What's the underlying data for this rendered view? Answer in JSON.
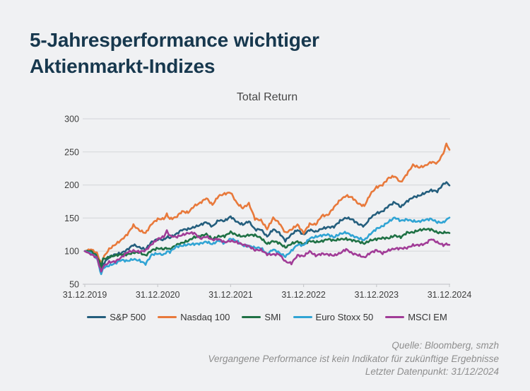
{
  "page": {
    "background_color": "#f0f1f3",
    "title_color": "#17384e"
  },
  "header": {
    "title_line1": "5-Jahresperformance wichtiger",
    "title_line2": "Aktienmarkt-Indizes"
  },
  "footer": {
    "line1": "Quelle: Bloomberg, smzh",
    "line2": "Vergangene Performance ist kein Indikator für zukünftige Ergebnisse",
    "line3": "Letzter Datenpunkt: 31/12/2024"
  },
  "chart_data": {
    "type": "line",
    "title": "Total Return",
    "xlabel": "",
    "ylabel": "",
    "grid": true,
    "legend_position": "bottom",
    "ylim": [
      50,
      300
    ],
    "y_ticks": [
      50,
      100,
      150,
      200,
      250,
      300
    ],
    "x_unit": "months since 31.12.2019",
    "xlim": [
      0,
      60
    ],
    "x_ticks": [
      {
        "m": 0,
        "label": "31.12.2019"
      },
      {
        "m": 12,
        "label": "31.12.2020"
      },
      {
        "m": 24,
        "label": "31.12.2021"
      },
      {
        "m": 36,
        "label": "31.12.2022"
      },
      {
        "m": 48,
        "label": "31.12.2023"
      },
      {
        "m": 60,
        "label": "31.12.2024"
      }
    ],
    "index_base": 100,
    "x": [
      0,
      1,
      2,
      2.7,
      3,
      4,
      5,
      6,
      7,
      8,
      9,
      10,
      11,
      12,
      13,
      13.5,
      14,
      15,
      16,
      17,
      18,
      19,
      20,
      21,
      22,
      23,
      24,
      25,
      26,
      27,
      28,
      29,
      30,
      31,
      32,
      33,
      34,
      35,
      36,
      37,
      38,
      39,
      40,
      41,
      42,
      43,
      44,
      45,
      46,
      47,
      48,
      49,
      50,
      51,
      52,
      53,
      54,
      55,
      56,
      57,
      58,
      59,
      59.5,
      60
    ],
    "series": [
      {
        "name": "S&P 500",
        "color": "#245e7d",
        "values": [
          100,
          99.9,
          91.8,
          70.5,
          80.4,
          90.7,
          95.0,
          96.9,
          102.3,
          109.7,
          105.5,
          102.7,
          113.9,
          118.2,
          117.0,
          121.5,
          120.3,
          125.6,
          132.3,
          133.2,
          136.3,
          139.6,
          143.8,
          137.1,
          146.7,
          145.7,
          152.2,
          144.3,
          140.0,
          145.2,
          132.6,
          132.8,
          121.8,
          133.0,
          127.6,
          115.8,
          125.2,
          132.2,
          124.6,
          132.4,
          129.2,
          134.0,
          136.1,
          136.7,
          145.7,
          150.4,
          148.0,
          140.9,
          137.9,
          150.5,
          157.3,
          160.0,
          168.5,
          173.9,
          166.8,
          175.1,
          181.4,
          183.6,
          188.0,
          192.0,
          190.3,
          201.5,
          204.0,
          199.5
        ]
      },
      {
        "name": "Nasdaq 100",
        "color": "#e8793b",
        "values": [
          100,
          103.0,
          96.9,
          81.0,
          89.5,
          103.1,
          109.9,
          116.8,
          125.4,
          139.2,
          131.3,
          127.2,
          141.2,
          148.4,
          148.8,
          155.5,
          148.7,
          151.2,
          160.1,
          158.2,
          168.2,
          172.9,
          180.2,
          169.9,
          183.3,
          186.6,
          188.8,
          172.8,
          165.0,
          171.9,
          149.0,
          146.6,
          133.4,
          150.2,
          142.5,
          127.6,
          132.7,
          140.0,
          127.4,
          140.9,
          140.3,
          153.6,
          154.4,
          166.3,
          177.1,
          183.8,
          181.0,
          171.8,
          168.2,
          186.4,
          196.6,
          200.1,
          210.7,
          213.2,
          203.8,
          216.6,
          230.2,
          226.5,
          229.0,
          234.7,
          232.8,
          248.0,
          262.0,
          253.0
        ]
      },
      {
        "name": "SMI",
        "color": "#1f7145",
        "values": [
          100,
          100.2,
          92.6,
          77.0,
          87.8,
          91.0,
          93.6,
          94.8,
          95.0,
          97.7,
          98.1,
          93.3,
          101.3,
          104.3,
          103.2,
          104.8,
          102.5,
          109.3,
          112.4,
          115.6,
          121.0,
          122.7,
          125.7,
          118.1,
          122.3,
          122.7,
          128.8,
          124.2,
          122.1,
          124.4,
          124.2,
          119.8,
          110.9,
          115.3,
          112.2,
          105.5,
          111.2,
          114.5,
          110.5,
          115.5,
          113.7,
          114.9,
          118.3,
          116.1,
          118.0,
          118.4,
          116.4,
          114.7,
          111.5,
          116.3,
          118.2,
          119.8,
          119.6,
          123.5,
          121.0,
          128.1,
          128.3,
          131.8,
          133.1,
          132.8,
          128.2,
          127.6,
          128.5,
          127.2
        ]
      },
      {
        "name": "Euro Stoxx 50",
        "color": "#30a4d4",
        "values": [
          100,
          97.2,
          89.0,
          65.0,
          74.4,
          78.2,
          81.7,
          86.6,
          85.1,
          87.8,
          85.8,
          80.7,
          94.6,
          96.3,
          94.4,
          99.5,
          98.8,
          106.5,
          108.2,
          110.0,
          110.7,
          111.4,
          114.3,
          110.5,
          116.1,
          111.9,
          118.7,
          115.4,
          108.5,
          107.9,
          105.2,
          104.8,
          95.5,
          102.7,
          97.5,
          91.9,
          100.3,
          109.9,
          108.6,
          119.4,
          121.6,
          123.8,
          125.0,
          121.0,
          126.2,
          128.2,
          123.2,
          119.9,
          116.6,
          126.0,
          133.8,
          137.7,
          144.5,
          150.7,
          145.9,
          147.8,
          145.3,
          144.7,
          147.3,
          148.6,
          143.7,
          143.3,
          147.5,
          151.0
        ]
      },
      {
        "name": "MSCI EM",
        "color": "#a13c97",
        "values": [
          100,
          95.3,
          90.2,
          68.5,
          76.4,
          83.4,
          84.1,
          90.3,
          98.4,
          100.6,
          99.0,
          101.0,
          110.3,
          118.3,
          121.9,
          130.5,
          123.2,
          121.3,
          124.3,
          127.2,
          127.4,
          118.9,
          122.0,
          117.1,
          118.3,
          113.4,
          115.6,
          113.4,
          110.0,
          107.5,
          101.5,
          101.9,
          95.2,
          95.0,
          95.4,
          84.2,
          81.6,
          93.7,
          92.4,
          99.7,
          93.2,
          96.0,
          95.0,
          93.4,
          96.9,
          102.9,
          96.6,
          94.1,
          90.4,
          97.6,
          101.4,
          96.7,
          101.3,
          103.8,
          104.2,
          104.8,
          108.9,
          109.2,
          111.0,
          118.4,
          113.2,
          109.1,
          110.5,
          109.3
        ]
      }
    ]
  }
}
